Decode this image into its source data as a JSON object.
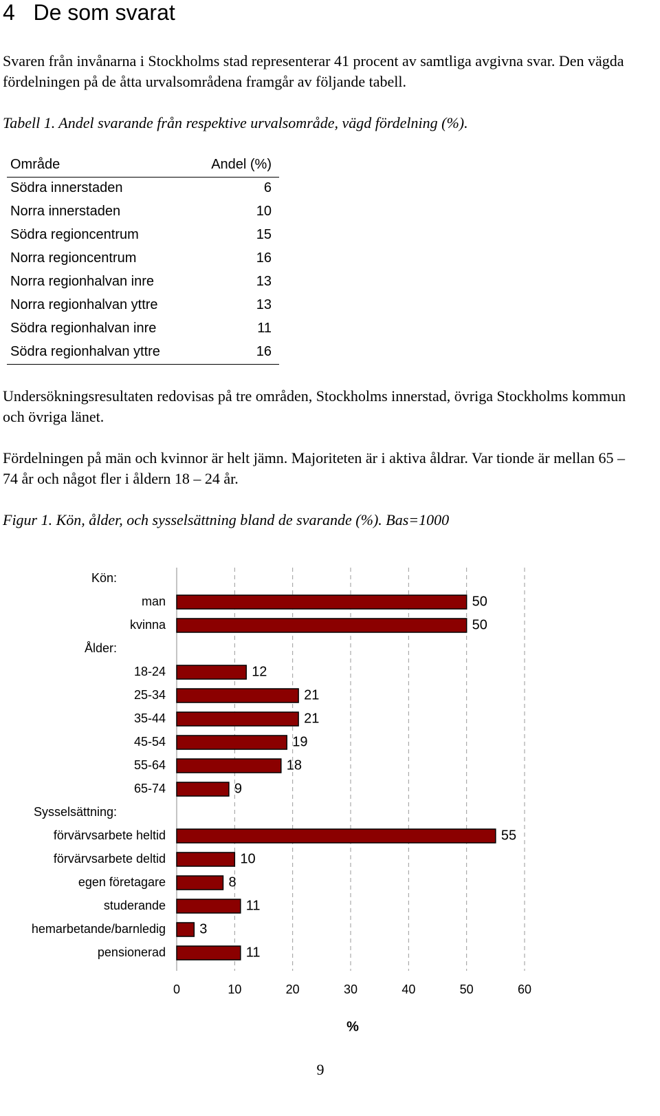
{
  "heading": {
    "number": "4",
    "title": "De som svarat"
  },
  "paragraphs": [
    "Svaren från invånarna i Stockholms stad representerar 41 procent av samtliga avgivna svar. Den vägda fördelningen på de åtta urvalsområdena framgår av följande tabell.",
    "Undersökningsresultaten redovisas på tre områden, Stockholms innerstad, övriga Stockholms kommun och övriga länet.",
    "Fördelningen på män och kvinnor är helt jämn. Majoriteten är i aktiva åldrar. Var tionde är mellan 65 – 74 år och något fler i åldern 18 – 24 år."
  ],
  "table": {
    "caption": "Tabell 1. Andel svarande från respektive urvalsområde, vägd fördelning (%).",
    "header": [
      "Område",
      "Andel (%)"
    ],
    "rows": [
      [
        "Södra innerstaden",
        6
      ],
      [
        "Norra innerstaden",
        10
      ],
      [
        "Södra regioncentrum",
        15
      ],
      [
        "Norra regioncentrum",
        16
      ],
      [
        "Norra regionhalvan inre",
        13
      ],
      [
        "Norra regionhalvan yttre",
        13
      ],
      [
        "Södra regionhalvan inre",
        11
      ],
      [
        "Södra regionhalvan yttre",
        16
      ]
    ]
  },
  "figure_caption": "Figur 1. Kön, ålder, och sysselsättning bland de svarande (%). Bas=1000",
  "chart_data": {
    "type": "hbar",
    "color": "#8b0000",
    "grid": true,
    "groups": [
      {
        "label": "Kön:",
        "categories": [
          "man",
          "kvinna"
        ],
        "values": [
          50,
          50
        ]
      },
      {
        "label": "Ålder:",
        "categories": [
          "18-24",
          "25-34",
          "35-44",
          "45-54",
          "55-64",
          "65-74"
        ],
        "values": [
          12,
          21,
          21,
          19,
          18,
          9
        ]
      },
      {
        "label": "Sysselsättning:",
        "categories": [
          "förvärvsarbete heltid",
          "förvärvsarbete deltid",
          "egen företagare",
          "studerande",
          "hemarbetande/barnledig",
          "pensionerad"
        ],
        "values": [
          55,
          10,
          8,
          11,
          3,
          11
        ]
      }
    ],
    "xlim": [
      0,
      60
    ],
    "xticks": [
      0,
      10,
      20,
      30,
      40,
      50,
      60
    ],
    "x_label": "%"
  },
  "page_number": "9"
}
